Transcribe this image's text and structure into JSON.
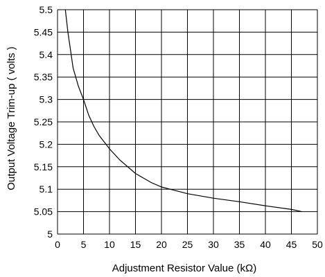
{
  "chart_data": {
    "type": "line",
    "title": "",
    "xlabel": "Adjustment Resistor Value (kΩ)",
    "ylabel": "Output Voltage Trim-up ( volts )",
    "xlim": [
      0,
      50
    ],
    "ylim": [
      5,
      5.5
    ],
    "x_ticks": [
      "0",
      "5",
      "10",
      "15",
      "20",
      "25",
      "30",
      "35",
      "40",
      "45",
      "50"
    ],
    "y_ticks": [
      "5",
      "5.05",
      "5.1",
      "5.15",
      "5.2",
      "5.25",
      "5.3",
      "5.35",
      "5.4",
      "5.45",
      "5.5"
    ],
    "grid": true,
    "legend": "none",
    "line_color": "#000000",
    "series": [
      {
        "x": [
          1.5,
          2,
          3,
          4,
          5,
          6,
          7,
          8,
          10,
          12,
          15,
          18,
          20,
          25,
          30,
          35,
          40,
          45,
          47
        ],
        "y": [
          5.5,
          5.45,
          5.37,
          5.33,
          5.3,
          5.265,
          5.24,
          5.22,
          5.19,
          5.165,
          5.135,
          5.115,
          5.105,
          5.09,
          5.08,
          5.072,
          5.063,
          5.055,
          5.05
        ]
      }
    ]
  }
}
